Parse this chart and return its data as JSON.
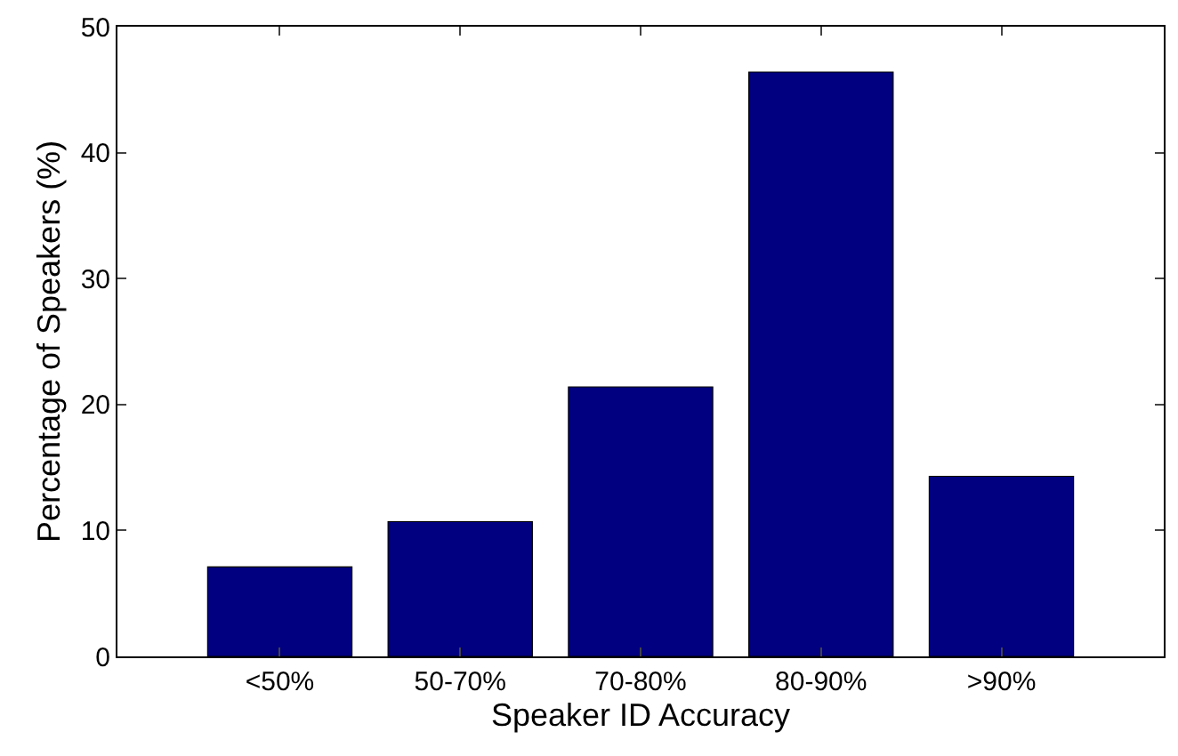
{
  "chart_data": {
    "type": "bar",
    "xlabel": "Speaker ID Accuracy",
    "ylabel": "Percentage of Speakers (%)",
    "categories": [
      "<50%",
      "50-70%",
      "70-80%",
      "80-90%",
      ">90%"
    ],
    "values": [
      7.1,
      10.7,
      21.4,
      46.4,
      14.3
    ],
    "color": "#000080",
    "ylim": [
      0,
      50
    ],
    "yticks": [
      0,
      10,
      20,
      30,
      40,
      50
    ]
  }
}
